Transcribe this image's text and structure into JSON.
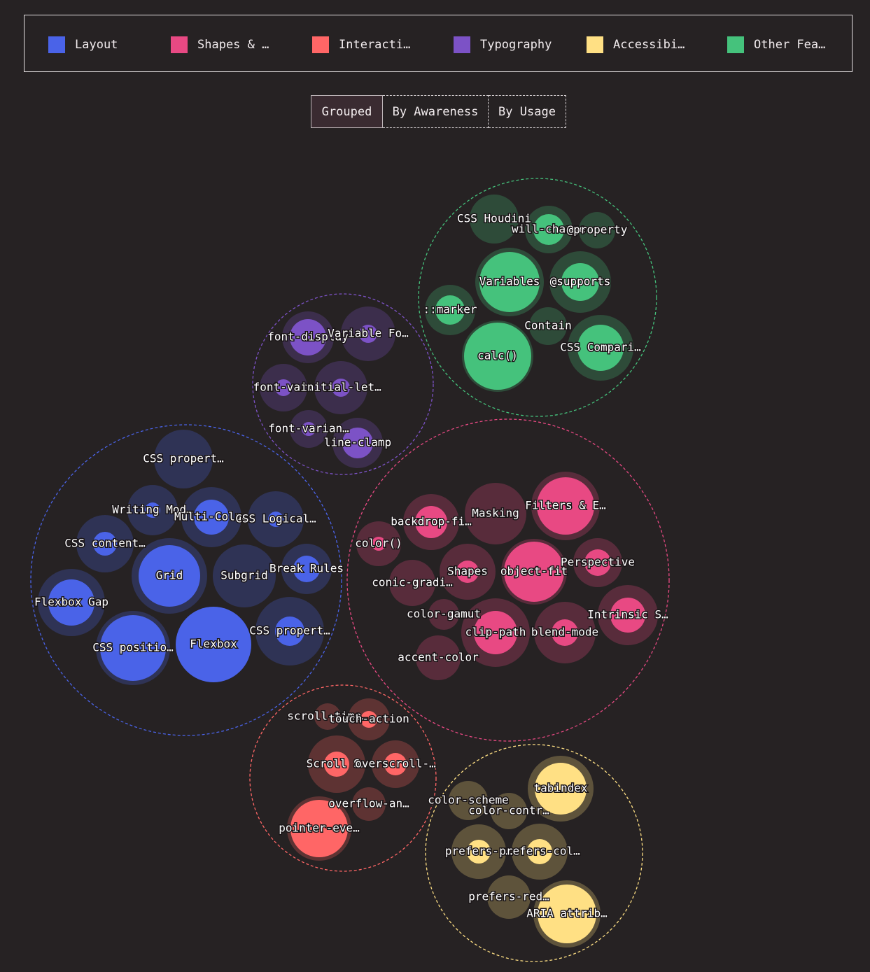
{
  "legend": [
    {
      "label": "Layout",
      "color": "#4a63e8"
    },
    {
      "label": "Shapes & …",
      "color": "#e84983"
    },
    {
      "label": "Interacti…",
      "color": "#ff6666"
    },
    {
      "label": "Typography",
      "color": "#7c52c6"
    },
    {
      "label": "Accessibi…",
      "color": "#ffe084"
    },
    {
      "label": "Other Fea…",
      "color": "#45c27c"
    }
  ],
  "tabs": [
    {
      "label": "Grouped",
      "active": true
    },
    {
      "label": "By Awareness",
      "active": false
    },
    {
      "label": "By Usage",
      "active": false
    }
  ],
  "chart_data": {
    "type": "packed-bubble",
    "view": "Grouped",
    "groups": [
      {
        "name": "Layout",
        "color": "#4a63e8",
        "items": [
          {
            "label": "CSS propert…",
            "awareness": 42,
            "usage": 0
          },
          {
            "label": "Writing Mod…",
            "awareness": 36,
            "usage": 11
          },
          {
            "label": "Multi-Colu…",
            "awareness": 43,
            "usage": 25
          },
          {
            "label": "CSS Logical…",
            "awareness": 40,
            "usage": 11
          },
          {
            "label": "CSS content…",
            "awareness": 41,
            "usage": 17
          },
          {
            "label": "Grid",
            "awareness": 54,
            "usage": 44
          },
          {
            "label": "Subgrid",
            "awareness": 45,
            "usage": 0
          },
          {
            "label": "Break Rules",
            "awareness": 36,
            "usage": 19
          },
          {
            "label": "Flexbox Gap",
            "awareness": 48,
            "usage": 33
          },
          {
            "label": "CSS positio…",
            "awareness": 53,
            "usage": 47
          },
          {
            "label": "Flexbox",
            "awareness": 54,
            "usage": 54
          },
          {
            "label": "CSS propert…",
            "awareness": 49,
            "usage": 21
          }
        ]
      },
      {
        "name": "Shapes & …",
        "color": "#e84983",
        "items": [
          {
            "label": "backdrop-fi…",
            "awareness": 40,
            "usage": 23
          },
          {
            "label": "Masking",
            "awareness": 44,
            "usage": 0
          },
          {
            "label": "Filters & E…",
            "awareness": 49,
            "usage": 41
          },
          {
            "label": "color()",
            "awareness": 32,
            "usage": 10
          },
          {
            "label": "conic-gradi…",
            "awareness": 33,
            "usage": 0
          },
          {
            "label": "Shapes",
            "awareness": 40,
            "usage": 16
          },
          {
            "label": "object-fit",
            "awareness": 47,
            "usage": 43
          },
          {
            "label": "Perspective",
            "awareness": 35,
            "usage": 19
          },
          {
            "label": "color-gamut",
            "awareness": 22,
            "usage": 0
          },
          {
            "label": "clip-path",
            "awareness": 49,
            "usage": 31
          },
          {
            "label": "blend-mode",
            "awareness": 44,
            "usage": 19
          },
          {
            "label": "Intrinsic S…",
            "awareness": 43,
            "usage": 25
          },
          {
            "label": "accent-color",
            "awareness": 32,
            "usage": 0
          }
        ]
      },
      {
        "name": "Interacti…",
        "color": "#ff6666",
        "items": [
          {
            "label": "scroll-time…",
            "awareness": 19,
            "usage": 0
          },
          {
            "label": "touch-action",
            "awareness": 30,
            "usage": 12
          },
          {
            "label": "Scroll S…",
            "awareness": 41,
            "usage": 18
          },
          {
            "label": "overscroll-…",
            "awareness": 34,
            "usage": 16
          },
          {
            "label": "overflow-an…",
            "awareness": 24,
            "usage": 0
          },
          {
            "label": "pointer-eve…",
            "awareness": 46,
            "usage": 41
          }
        ]
      },
      {
        "name": "Typography",
        "color": "#7c52c6",
        "items": [
          {
            "label": "font-display",
            "awareness": 37,
            "usage": 26
          },
          {
            "label": "Variable Fo…",
            "awareness": 39,
            "usage": 13
          },
          {
            "label": "font-var…",
            "awareness": 34,
            "usage": 12
          },
          {
            "label": "initial-let…",
            "awareness": 38,
            "usage": 13
          },
          {
            "label": "font-varian…",
            "awareness": 27,
            "usage": 10
          },
          {
            "label": "line-clamp",
            "awareness": 36,
            "usage": 22
          }
        ]
      },
      {
        "name": "Accessibi…",
        "color": "#ffe084",
        "items": [
          {
            "label": "color-scheme",
            "awareness": 28,
            "usage": 0
          },
          {
            "label": "color-contr…",
            "awareness": 26,
            "usage": 0
          },
          {
            "label": "tabindex",
            "awareness": 47,
            "usage": 37
          },
          {
            "label": "prefers-r…",
            "awareness": 39,
            "usage": 17
          },
          {
            "label": "prefers-col…",
            "awareness": 40,
            "usage": 18
          },
          {
            "label": "prefers-red…",
            "awareness": 31,
            "usage": 0
          },
          {
            "label": "ARIA attrib…",
            "awareness": 48,
            "usage": 42
          }
        ]
      },
      {
        "name": "Other Fea…",
        "color": "#45c27c",
        "items": [
          {
            "label": "CSS Houdini",
            "awareness": 35,
            "usage": 0
          },
          {
            "label": "will-change",
            "awareness": 34,
            "usage": 22
          },
          {
            "label": "@property",
            "awareness": 26,
            "usage": 0
          },
          {
            "label": "Variables",
            "awareness": 49,
            "usage": 43
          },
          {
            "label": "@supports",
            "awareness": 44,
            "usage": 27
          },
          {
            "label": "::marker",
            "awareness": 36,
            "usage": 21
          },
          {
            "label": "Contain",
            "awareness": 27,
            "usage": 0
          },
          {
            "label": "calc()",
            "awareness": 51,
            "usage": 48
          },
          {
            "label": "CSS Compari…",
            "awareness": 47,
            "usage": 33
          }
        ]
      }
    ]
  }
}
